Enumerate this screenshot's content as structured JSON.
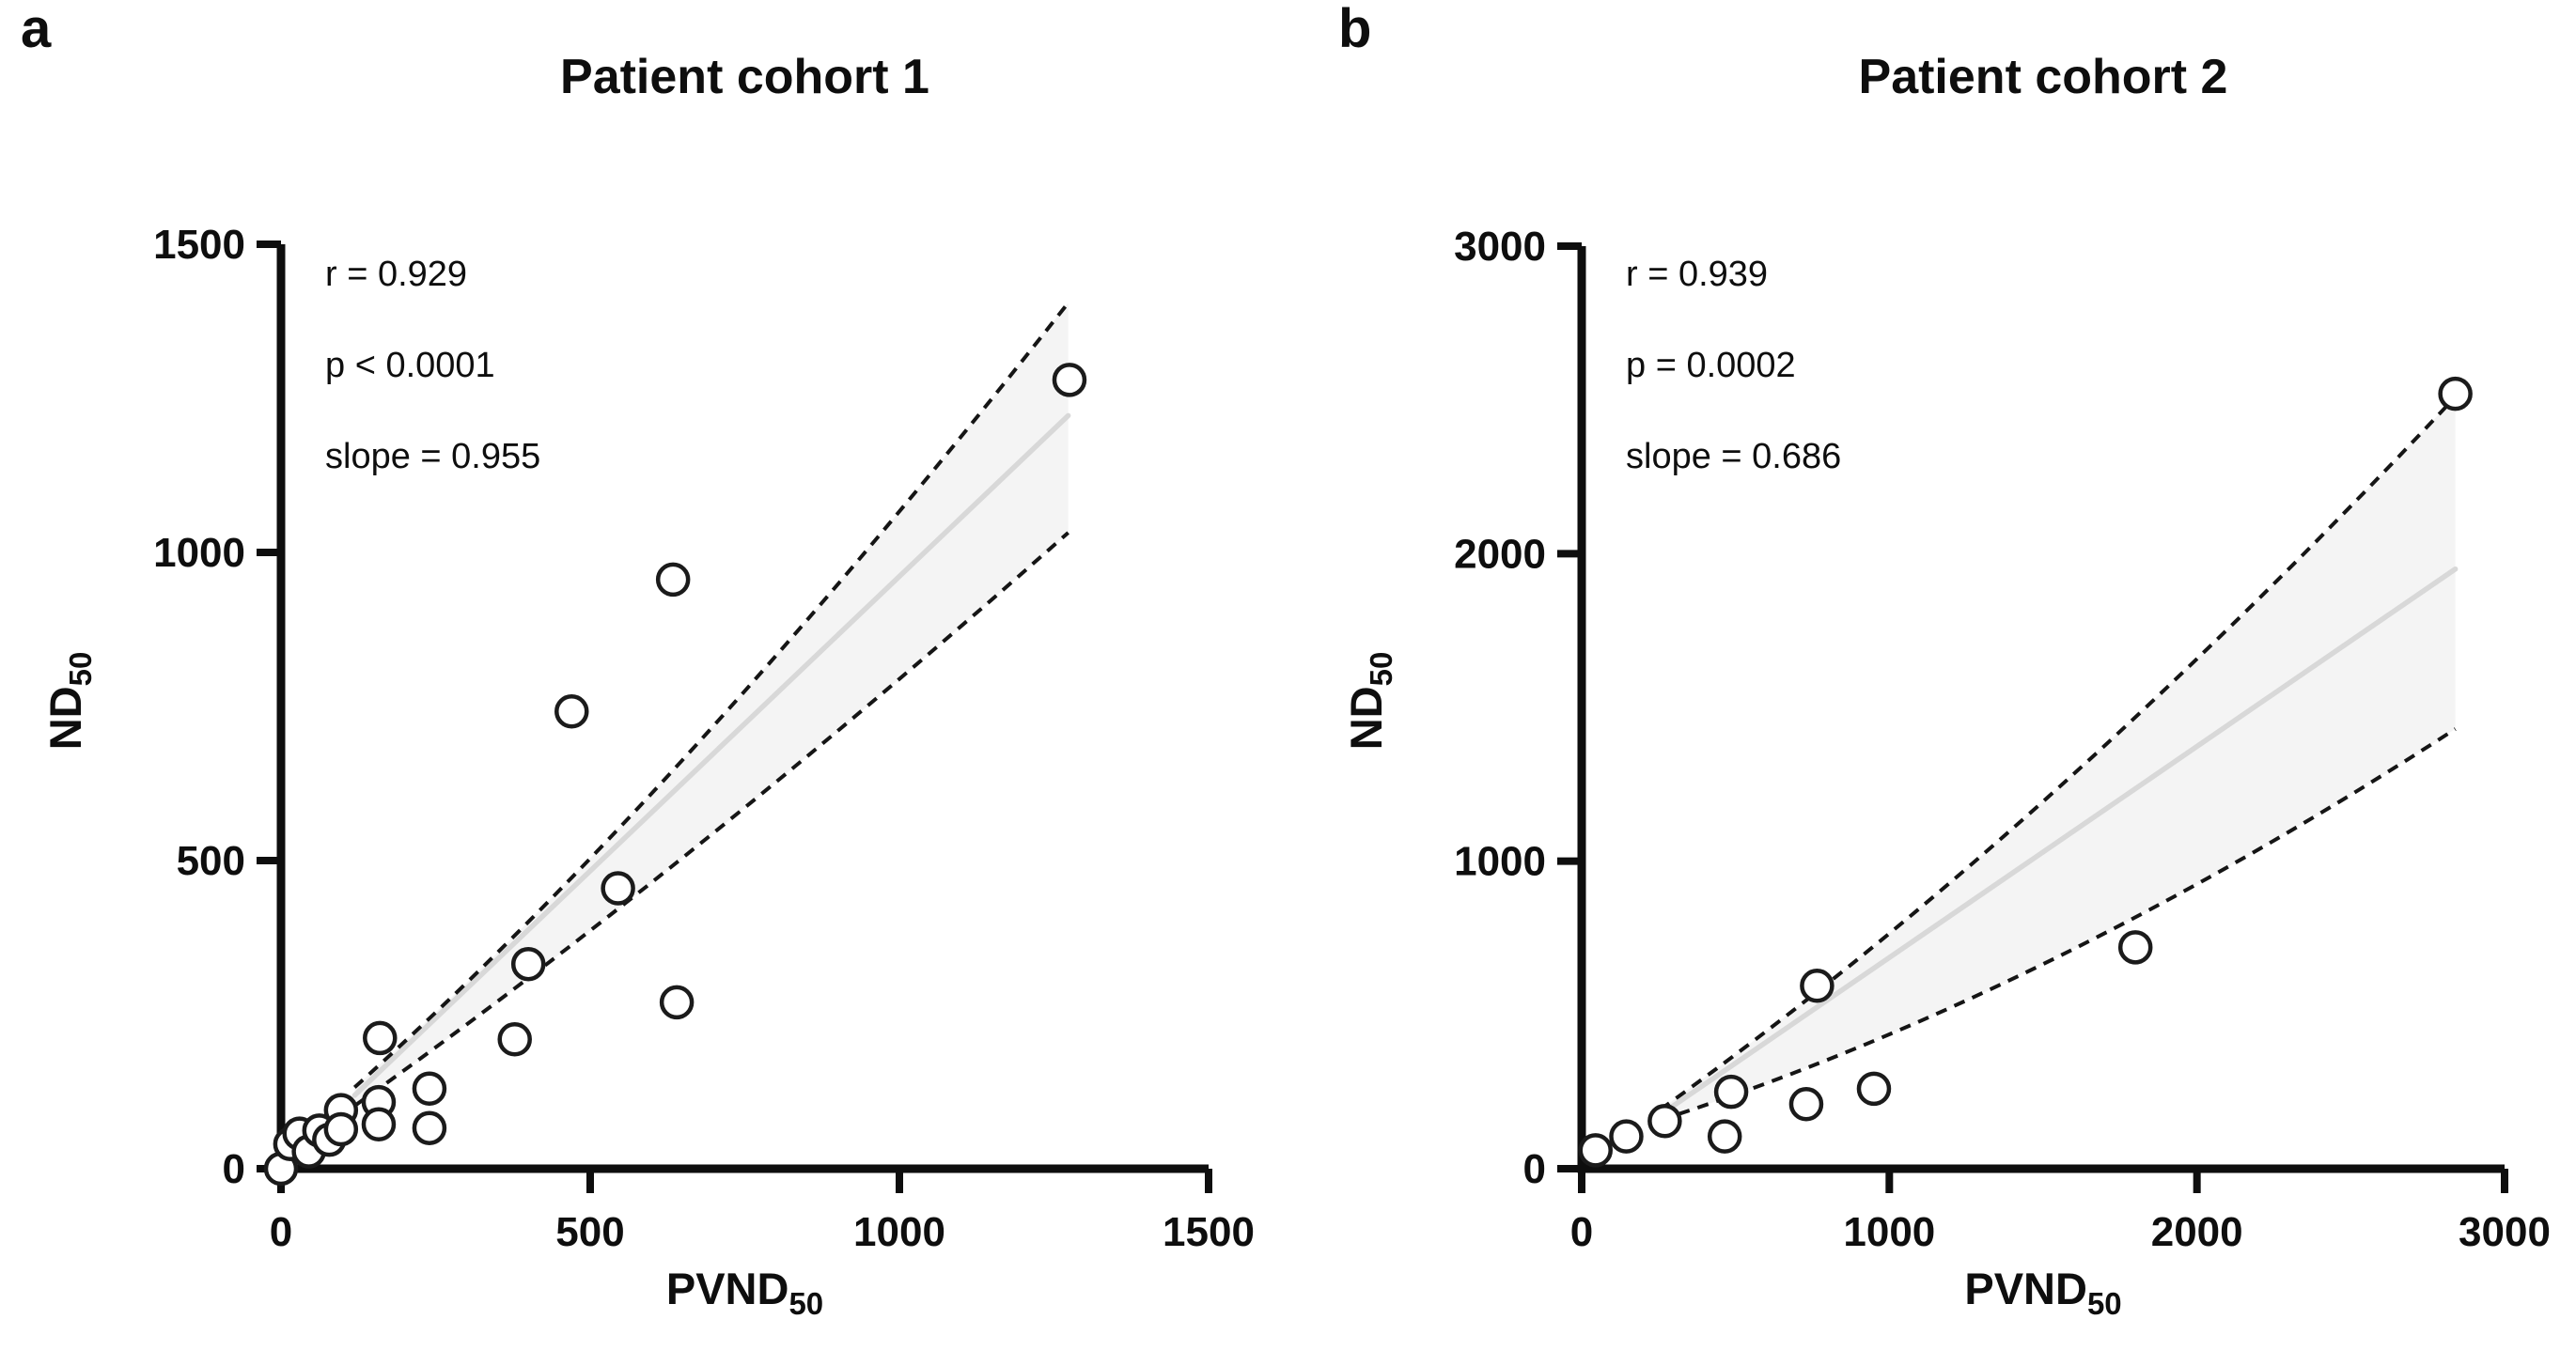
{
  "colors": {
    "background": "#ffffff",
    "axis": "#0e0e0e",
    "text": "#0e0e0e",
    "band_fill": "#f4f4f4",
    "regression_line": "#d8d8d8",
    "ci_dash": "#151515",
    "point_stroke": "#1b1b1b",
    "point_fill": "#ffffff"
  },
  "panels": [
    {
      "letter": "a",
      "title": "Patient cohort 1",
      "stats": [
        "r = 0.929",
        "p < 0.0001",
        "slope = 0.955"
      ],
      "x_label": "PVND",
      "x_label_sub": "50",
      "y_label": "ND",
      "y_label_sub": "50"
    },
    {
      "letter": "b",
      "title": "Patient cohort 2",
      "stats": [
        "r = 0.939",
        "p = 0.0002",
        "slope = 0.686"
      ],
      "x_label": "PVND",
      "x_label_sub": "50",
      "y_label": "ND",
      "y_label_sub": "50"
    }
  ],
  "chart_data": [
    {
      "type": "scatter",
      "title": "Patient cohort 1",
      "xlabel": "PVND50",
      "ylabel": "ND50",
      "xlim": [
        0,
        1500
      ],
      "ylim": [
        0,
        1500
      ],
      "xticks": [
        0,
        500,
        1000,
        1500
      ],
      "yticks": [
        0,
        500,
        1000,
        1500
      ],
      "grid": false,
      "legend": "none",
      "annotations": [
        "r = 0.929",
        "p < 0.0001",
        "slope = 0.955"
      ],
      "points": [
        [
          0,
          0
        ],
        [
          15,
          40
        ],
        [
          30,
          57
        ],
        [
          45,
          28
        ],
        [
          62,
          62
        ],
        [
          78,
          47
        ],
        [
          97,
          95
        ],
        [
          97,
          64
        ],
        [
          158,
          108
        ],
        [
          158,
          72
        ],
        [
          160,
          212
        ],
        [
          240,
          130
        ],
        [
          240,
          66
        ],
        [
          378,
          210
        ],
        [
          400,
          332
        ],
        [
          545,
          455
        ],
        [
          640,
          270
        ],
        [
          470,
          742
        ],
        [
          634,
          956
        ],
        [
          1275,
          1280
        ]
      ],
      "regression": {
        "r": 0.929,
        "p": "< 0.0001",
        "slope": 0.955,
        "line": [
          [
            119,
            119
          ],
          [
            1273,
            1222
          ]
        ],
        "ci_upper": {
          "start": [
            119,
            132
          ],
          "ctrl": [
            650,
            610
          ],
          "end": [
            1273,
            1405
          ]
        },
        "ci_lower": {
          "start": [
            119,
            102
          ],
          "ctrl": [
            650,
            480
          ],
          "end": [
            1273,
            1032
          ]
        }
      }
    },
    {
      "type": "scatter",
      "title": "Patient cohort 2",
      "xlabel": "PVND50",
      "ylabel": "ND50",
      "xlim": [
        0,
        3000
      ],
      "ylim": [
        0,
        3000
      ],
      "xticks": [
        0,
        1000,
        2000,
        3000
      ],
      "yticks": [
        0,
        1000,
        2000,
        3000
      ],
      "grid": false,
      "legend": "none",
      "annotations": [
        "r = 0.939",
        "p = 0.0002",
        "slope = 0.686"
      ],
      "points": [
        [
          45,
          60
        ],
        [
          145,
          105
        ],
        [
          270,
          155
        ],
        [
          465,
          105
        ],
        [
          486,
          250
        ],
        [
          730,
          210
        ],
        [
          950,
          260
        ],
        [
          765,
          595
        ],
        [
          1800,
          720
        ],
        [
          2840,
          2520
        ]
      ],
      "regression": {
        "r": 0.939,
        "p": "0.0002",
        "slope": 0.686,
        "line": [
          [
            255,
            175
          ],
          [
            2840,
            1950
          ]
        ],
        "ci_upper": {
          "start": [
            255,
            192
          ],
          "ctrl": [
            1500,
            1080
          ],
          "end": [
            2840,
            2510
          ]
        },
        "ci_lower": {
          "start": [
            255,
            158
          ],
          "ctrl": [
            1500,
            560
          ],
          "end": [
            2840,
            1430
          ]
        }
      }
    }
  ]
}
